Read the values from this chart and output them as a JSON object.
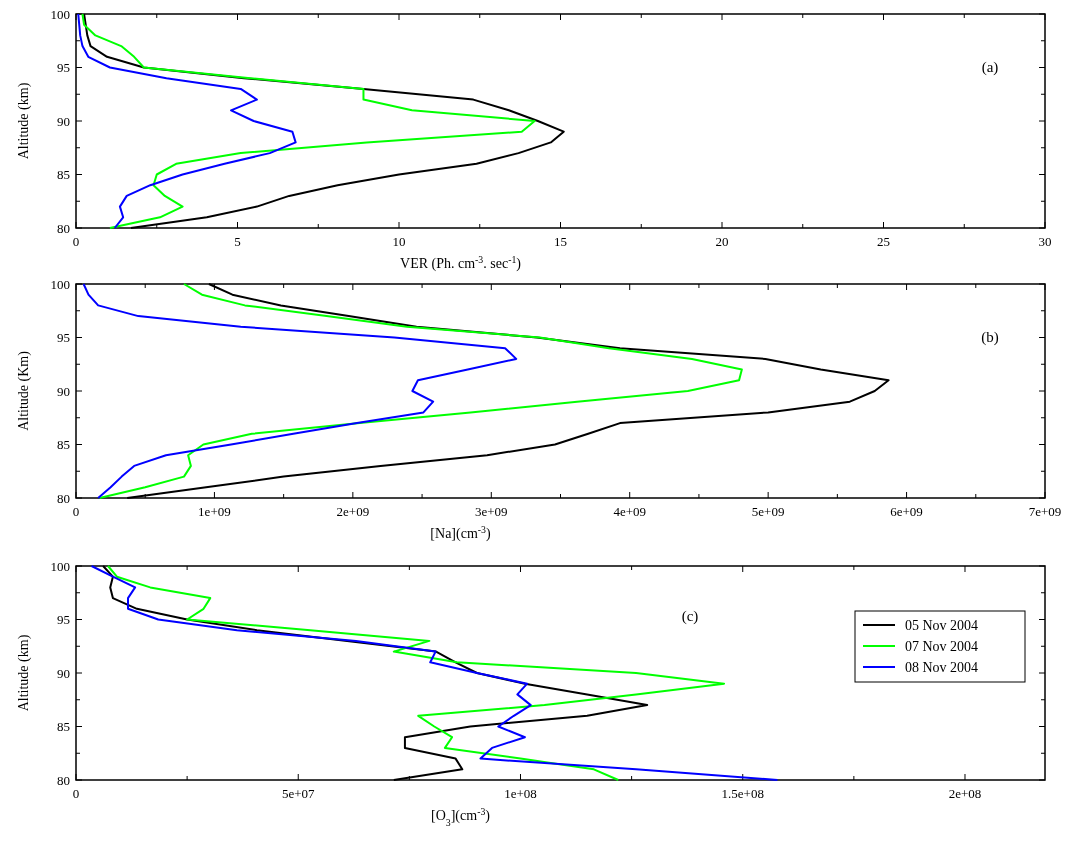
{
  "chart_data": [
    {
      "type": "line",
      "xlabel": "VER (Ph. cm$^{-3}$. sec$^{-1}$)",
      "ylabel": "Altitude (km)",
      "annotations": [
        "(a)"
      ],
      "xlim": [
        0,
        30
      ],
      "ylim": [
        80,
        100
      ],
      "xticks": [
        0,
        {
          "value": 2.5,
          "label": null
        },
        5,
        {
          "value": 7.5,
          "label": null
        },
        10,
        {
          "value": 12.5,
          "label": null
        },
        15,
        {
          "value": 17.5,
          "label": null
        },
        20,
        {
          "value": 22.5,
          "label": null
        },
        25,
        {
          "value": 27.5,
          "label": null
        },
        30
      ],
      "yticks": [
        80,
        {
          "value": 82.5,
          "label": null
        },
        85,
        {
          "value": 87.5,
          "label": null
        },
        90,
        {
          "value": 92.5,
          "label": null
        },
        95,
        {
          "value": 97.5,
          "label": null
        },
        100
      ],
      "series": [
        {
          "color": "#000000",
          "x": [
            0.25,
            0.3,
            0.35,
            0.45,
            0.96,
            2.1,
            5.2,
            8.9,
            12.3,
            13.4,
            14.3,
            15.1,
            14.7,
            13.7,
            12.4,
            10.0,
            8.1,
            6.6,
            5.6,
            4.05,
            1.7
          ],
          "values": [
            100,
            99,
            98,
            97,
            96,
            95,
            94,
            93,
            92,
            91,
            90,
            89,
            88,
            87,
            86,
            85,
            84,
            83,
            82,
            81,
            80
          ]
        },
        {
          "color": "#00ff00",
          "x": [
            0.2,
            0.25,
            0.6,
            1.4,
            1.8,
            2.1,
            5.4,
            8.9,
            8.9,
            10.4,
            14.2,
            13.8,
            9.0,
            5.1,
            3.1,
            2.5,
            2.4,
            2.75,
            3.3,
            2.6,
            1.05
          ],
          "values": [
            100,
            99,
            98,
            97,
            96,
            95,
            94,
            93,
            92,
            91,
            90,
            89,
            88,
            87,
            86,
            85,
            84,
            83,
            82,
            81,
            80
          ]
        },
        {
          "color": "#0000ff",
          "x": [
            0.07,
            0.1,
            0.13,
            0.2,
            0.38,
            1.05,
            2.8,
            5.1,
            5.6,
            4.8,
            5.5,
            6.7,
            6.8,
            6.0,
            4.6,
            3.3,
            2.3,
            1.57,
            1.36,
            1.46,
            1.2
          ],
          "values": [
            100,
            99,
            98,
            97,
            96,
            95,
            94,
            93,
            92,
            91,
            90,
            89,
            88,
            87,
            86,
            85,
            84,
            83,
            82,
            81,
            80
          ]
        }
      ]
    },
    {
      "type": "line",
      "xlabel": "[Na](cm$^{-3}$)",
      "ylabel": "Altitude (Km)",
      "annotations": [
        "(b)"
      ],
      "xlim": [
        0,
        7000000000
      ],
      "ylim": [
        80,
        100
      ],
      "xticks": [
        0,
        {
          "value": 500000000,
          "label": null
        },
        {
          "value": 1000000000,
          "label": "1e+09"
        },
        {
          "value": 1500000000,
          "label": null
        },
        {
          "value": 2000000000,
          "label": "2e+09"
        },
        {
          "value": 2500000000,
          "label": null
        },
        {
          "value": 3000000000,
          "label": "3e+09"
        },
        {
          "value": 3500000000,
          "label": null
        },
        {
          "value": 4000000000,
          "label": "4e+09"
        },
        {
          "value": 4500000000,
          "label": null
        },
        {
          "value": 5000000000,
          "label": "5e+09"
        },
        {
          "value": 5500000000,
          "label": null
        },
        {
          "value": 6000000000,
          "label": "6e+09"
        },
        {
          "value": 6500000000,
          "label": null
        },
        {
          "value": 7000000000,
          "label": "7e+09"
        }
      ],
      "yticks": [
        80,
        {
          "value": 82.5,
          "label": null
        },
        85,
        {
          "value": 87.5,
          "label": null
        },
        90,
        {
          "value": 92.5,
          "label": null
        },
        95,
        {
          "value": 97.5,
          "label": null
        },
        100
      ],
      "series": [
        {
          "color": "#000000",
          "x": [
            960000000,
            1130000000,
            1480000000,
            1970000000,
            2460000000,
            3330000000,
            3930000000,
            4980000000,
            5380000000,
            5870000000,
            5770000000,
            5590000000,
            5000000000,
            3930000000,
            3700000000,
            3460000000,
            2970000000,
            2200000000,
            1500000000,
            940000000,
            370000000
          ],
          "values": [
            100,
            99,
            98,
            97,
            96,
            95,
            94,
            93,
            92,
            91,
            90,
            89,
            88,
            87,
            86,
            85,
            84,
            83,
            82,
            81,
            80
          ]
        },
        {
          "color": "#00ff00",
          "x": [
            780000000,
            910000000,
            1220000000,
            1810000000,
            2390000000,
            3350000000,
            3850000000,
            4450000000,
            4810000000,
            4790000000,
            4420000000,
            3620000000,
            2850000000,
            2050000000,
            1270000000,
            920000000,
            810000000,
            830000000,
            780000000,
            500000000,
            170000000
          ],
          "values": [
            100,
            99,
            98,
            97,
            96,
            95,
            94,
            93,
            92,
            91,
            90,
            89,
            88,
            87,
            86,
            85,
            84,
            83,
            82,
            81,
            80
          ]
        },
        {
          "color": "#0000ff",
          "x": [
            55000000,
            90000000,
            160000000,
            450000000,
            1190000000,
            2300000000,
            3100000000,
            3180000000,
            2830000000,
            2470000000,
            2430000000,
            2580000000,
            2510000000,
            2030000000,
            1570000000,
            1120000000,
            650000000,
            420000000,
            330000000,
            250000000,
            160000000
          ],
          "values": [
            100,
            99,
            98,
            97,
            96,
            95,
            94,
            93,
            92,
            91,
            90,
            89,
            88,
            87,
            86,
            85,
            84,
            83,
            82,
            81,
            80
          ]
        }
      ]
    },
    {
      "type": "line",
      "xlabel": "[O$_{3}$](cm$^{-3}$)",
      "ylabel": "Altitude (km)",
      "annotations": [
        "(c)"
      ],
      "legend": "top right",
      "xlim": [
        0,
        218000000
      ],
      "ylim": [
        80,
        100
      ],
      "xticks": [
        0,
        {
          "value": 25000000,
          "label": null
        },
        {
          "value": 50000000,
          "label": "5e+07"
        },
        {
          "value": 75000000,
          "label": null
        },
        {
          "value": 100000000,
          "label": "1e+08"
        },
        {
          "value": 125000000,
          "label": null
        },
        {
          "value": 150000000,
          "label": "1.5e+08"
        },
        {
          "value": 175000000,
          "label": null
        },
        {
          "value": 200000000,
          "label": "2e+08"
        }
      ],
      "yticks": [
        80,
        {
          "value": 82.5,
          "label": null
        },
        85,
        {
          "value": 87.5,
          "label": null
        },
        90,
        {
          "value": 92.5,
          "label": null
        },
        95,
        {
          "value": 97.5,
          "label": null
        },
        100
      ],
      "series": [
        {
          "name": "05 Nov 2004",
          "color": "#000000",
          "x": [
            6100000,
            8300000,
            7700000,
            8300000,
            13700000,
            25000000,
            40700000,
            61000000,
            81000000,
            85400000,
            90200000,
            101000000,
            115000000,
            128500000,
            115000000,
            88700000,
            74000000,
            74000000,
            85400000,
            86900000,
            71500000
          ],
          "values": [
            100,
            99,
            98,
            97,
            96,
            95,
            94,
            93,
            92,
            91,
            90,
            89,
            88,
            87,
            86,
            85,
            84,
            83,
            82,
            81,
            80
          ]
        },
        {
          "name": "07 Nov 2004",
          "color": "#00ff00",
          "x": [
            7200000,
            9200000,
            16700000,
            30200000,
            28700000,
            25000000,
            52700000,
            79500000,
            71500000,
            85700000,
            126000000,
            145800000,
            126000000,
            105400000,
            77000000,
            80600000,
            84600000,
            83000000,
            100000000,
            116500000,
            122000000
          ],
          "values": [
            100,
            99,
            98,
            97,
            96,
            95,
            94,
            93,
            92,
            91,
            90,
            89,
            88,
            87,
            86,
            85,
            84,
            83,
            82,
            81,
            80
          ]
        },
        {
          "name": "08 Nov 2004",
          "color": "#0000ff",
          "x": [
            3500000,
            8300000,
            13300000,
            11700000,
            11700000,
            18500000,
            36200000,
            63000000,
            80900000,
            79700000,
            90200000,
            101500000,
            99300000,
            102300000,
            98500000,
            95000000,
            101000000,
            93600000,
            91000000,
            126000000,
            157800000
          ],
          "values": [
            100,
            99,
            98,
            97,
            96,
            95,
            94,
            93,
            92,
            91,
            90,
            89,
            88,
            87,
            86,
            85,
            84,
            83,
            82,
            81,
            80
          ]
        }
      ]
    }
  ]
}
